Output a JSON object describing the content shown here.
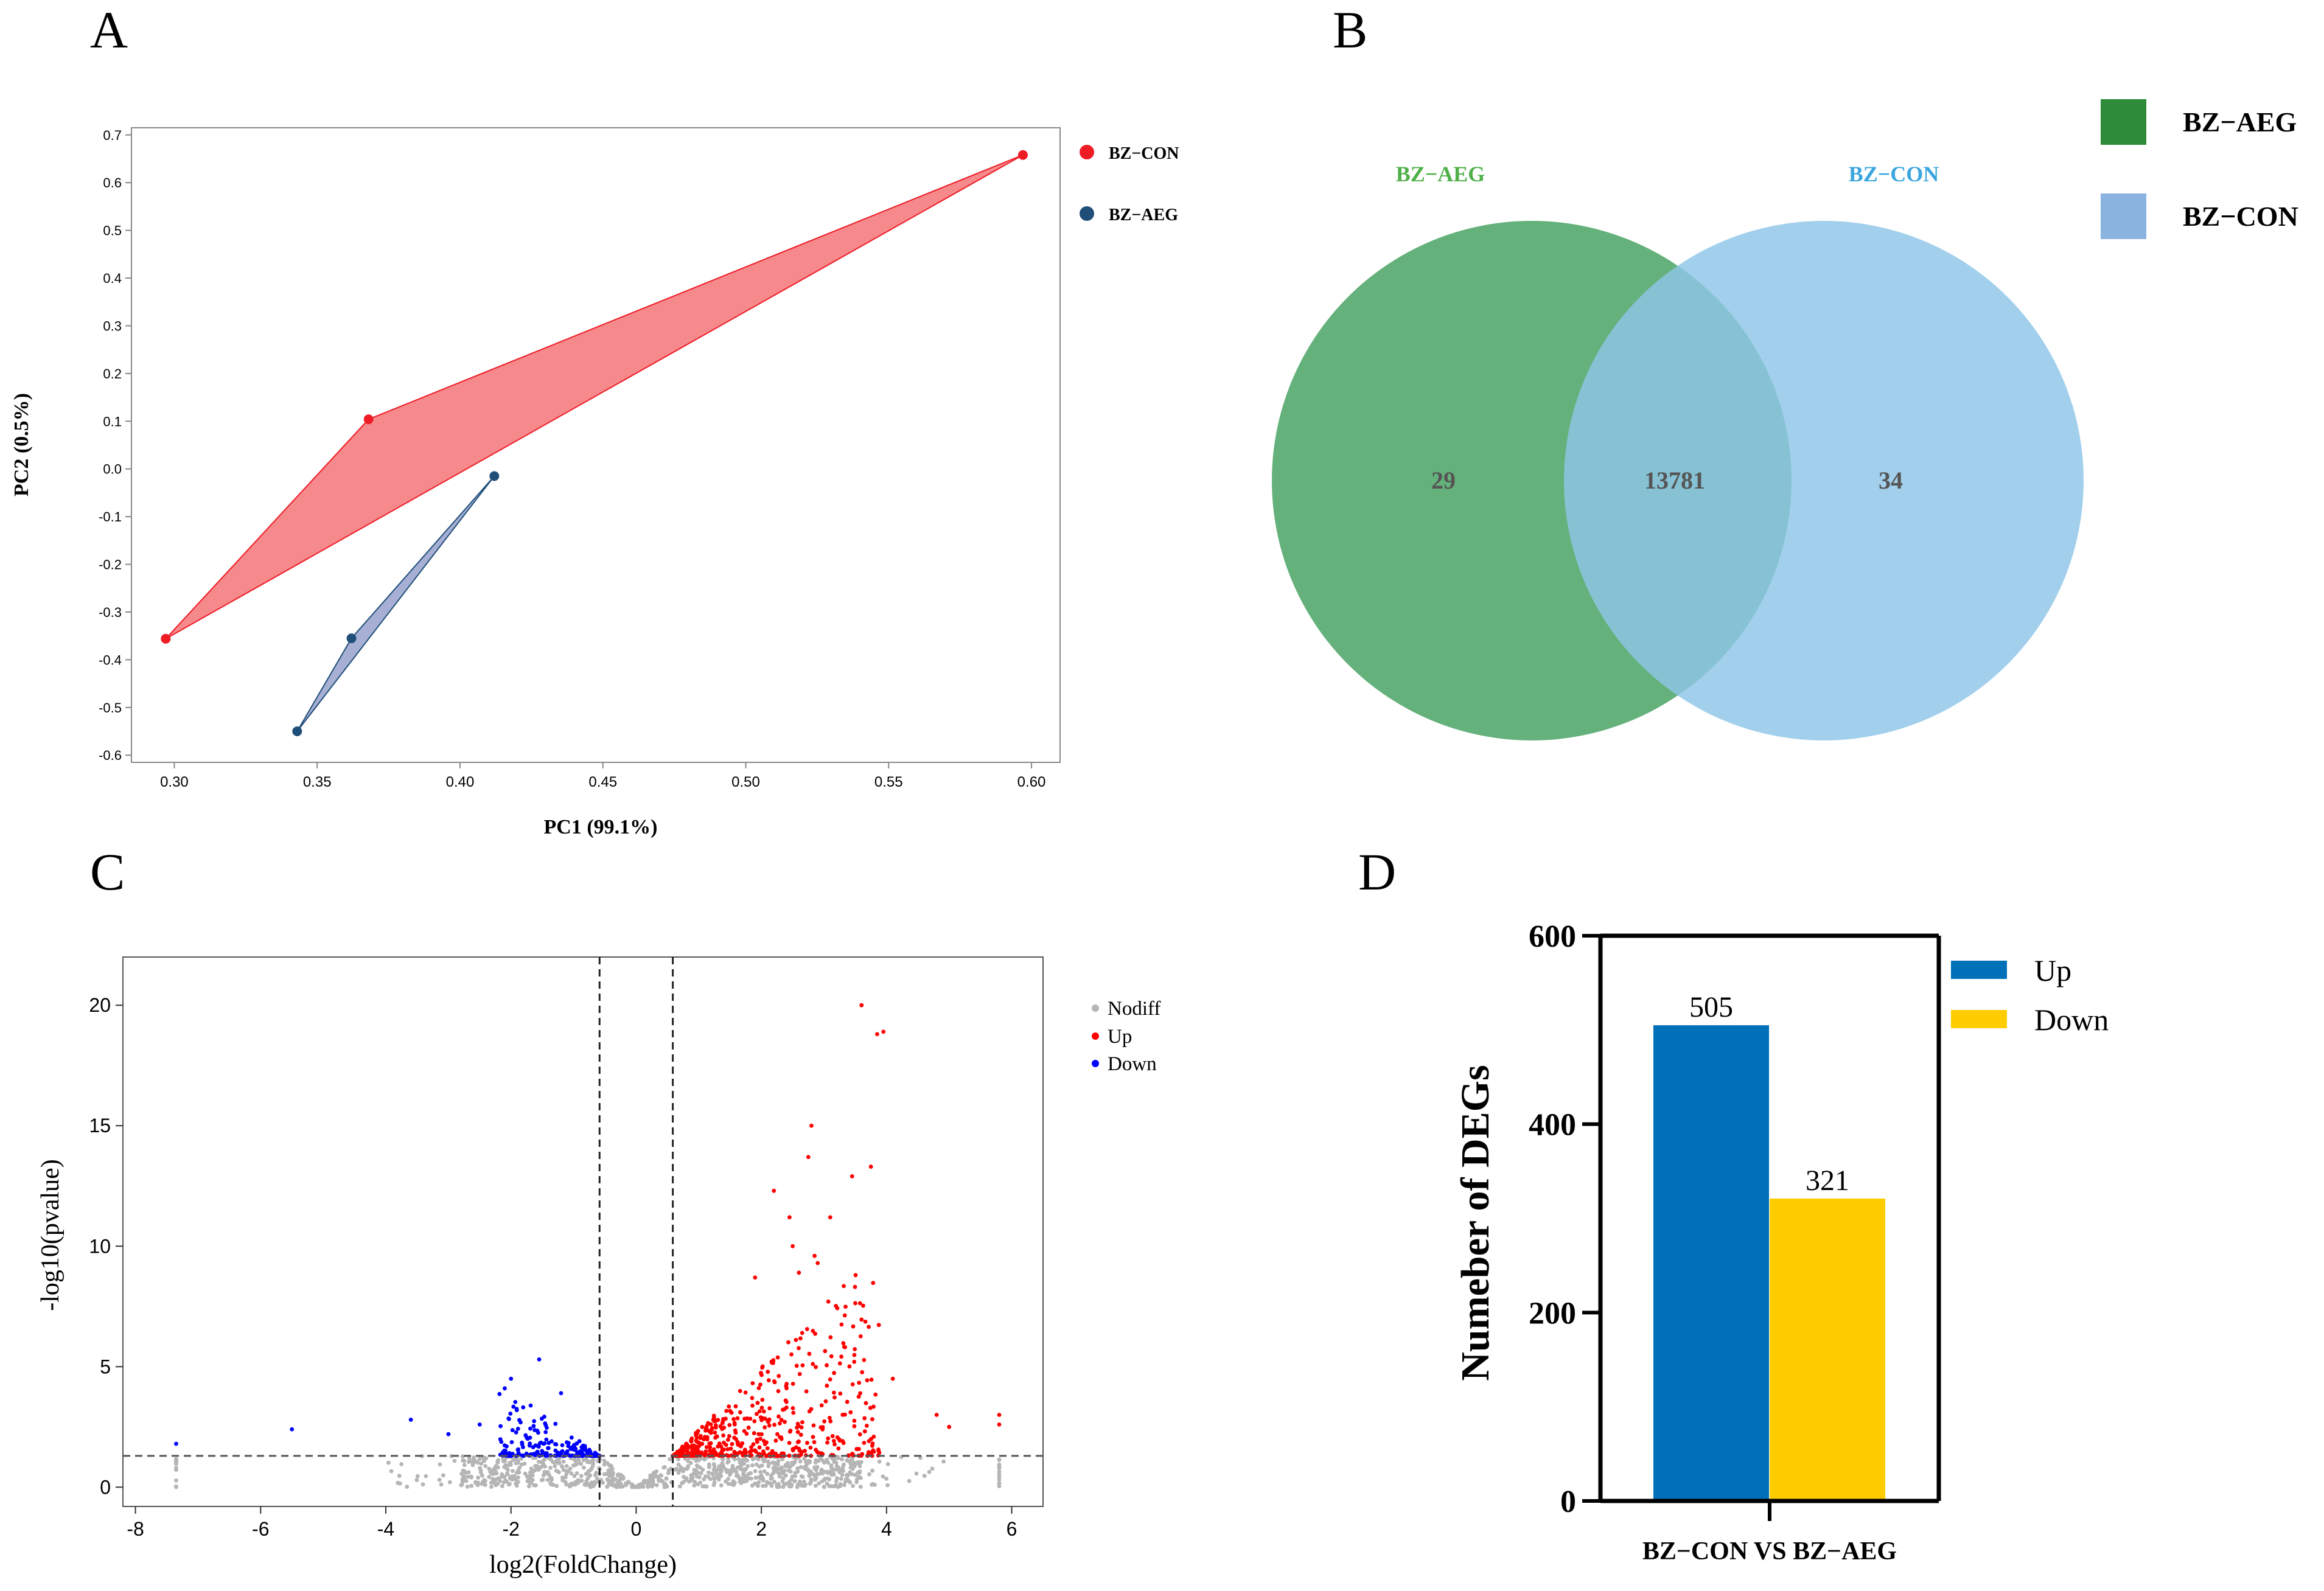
{
  "panel_labels": [
    "A",
    "B",
    "C",
    "D"
  ],
  "chart_data": [
    {
      "panel": "A",
      "type": "scatter",
      "title": "",
      "xlabel": "PC1 (99.1%)",
      "ylabel": "PC2 (0.5%)",
      "xlim": [
        0.285,
        0.61
      ],
      "ylim": [
        -0.615,
        0.715
      ],
      "xticks": [
        "0.30",
        "0.35",
        "0.40",
        "0.45",
        "0.50",
        "0.55",
        "0.60"
      ],
      "xtick_values": [
        0.3,
        0.35,
        0.4,
        0.45,
        0.5,
        0.55,
        0.6
      ],
      "yticks": [
        "0.7",
        "0.6",
        "0.5",
        "0.4",
        "0.3",
        "0.2",
        "0.1",
        "0.0",
        "-0.1",
        "-0.2",
        "-0.3",
        "-0.4",
        "-0.5",
        "-0.6"
      ],
      "ytick_values": [
        0.7,
        0.6,
        0.5,
        0.4,
        0.3,
        0.2,
        0.1,
        0.0,
        -0.1,
        -0.2,
        -0.3,
        -0.4,
        -0.5,
        -0.6
      ],
      "series": [
        {
          "name": "BZ-CON",
          "color": "#ee1c25",
          "fill": "#f47c80",
          "points": [
            [
              0.597,
              0.658
            ],
            [
              0.368,
              0.104
            ],
            [
              0.297,
              -0.356
            ]
          ]
        },
        {
          "name": "BZ-AEG",
          "color": "#1f4e79",
          "fill": "#9da7cf",
          "points": [
            [
              0.412,
              -0.015
            ],
            [
              0.362,
              -0.355
            ],
            [
              0.343,
              -0.55
            ]
          ]
        }
      ],
      "legend": [
        "BZ−CON",
        "BZ−AEG"
      ]
    },
    {
      "panel": "B",
      "type": "venn",
      "sets": [
        {
          "name": "BZ−AEG",
          "color": "#4aa364",
          "unique": "29"
        },
        {
          "name": "BZ−CON",
          "color": "#8ec6e8",
          "unique": "34"
        }
      ],
      "intersection": "13781",
      "legend": [
        {
          "label": "BZ−AEG",
          "color": "#2e8b38"
        },
        {
          "label": "BZ−CON",
          "color": "#8bb3e0"
        }
      ]
    },
    {
      "panel": "C",
      "type": "scatter",
      "title": "",
      "xlabel": "log2(FoldChange)",
      "ylabel": "-log10(pvalue)",
      "xlim": [
        -8.2,
        6.5
      ],
      "ylim": [
        -0.8,
        22
      ],
      "xticks": [
        "-8",
        "-6",
        "-4",
        "-2",
        "0",
        "2",
        "4",
        "6"
      ],
      "xtick_values": [
        -8,
        -6,
        -4,
        -2,
        0,
        2,
        4,
        6
      ],
      "yticks": [
        "0",
        "5",
        "10",
        "15",
        "20"
      ],
      "ytick_values": [
        0,
        5,
        10,
        15,
        20
      ],
      "thresholds": {
        "fold_change": [
          -0.585,
          0.585
        ],
        "pvalue_line": 1.3
      },
      "legend": [
        {
          "label": "Nodiff",
          "color": "#b5b5b5"
        },
        {
          "label": "Up",
          "color": "#ff0000"
        },
        {
          "label": "Down",
          "color": "#0000ff"
        }
      ],
      "highlighted_points": {
        "up": [
          [
            3.6,
            20.0
          ],
          [
            3.85,
            18.8
          ],
          [
            3.95,
            18.9
          ],
          [
            2.8,
            15.0
          ],
          [
            3.75,
            13.3
          ],
          [
            2.75,
            13.7
          ],
          [
            3.45,
            12.9
          ],
          [
            2.2,
            12.3
          ],
          [
            2.45,
            11.2
          ],
          [
            3.1,
            11.2
          ],
          [
            2.5,
            10.0
          ],
          [
            2.85,
            9.6
          ],
          [
            2.9,
            9.3
          ],
          [
            2.6,
            8.9
          ],
          [
            1.9,
            8.7
          ],
          [
            4.1,
            4.5
          ],
          [
            4.8,
            3.0
          ],
          [
            5.0,
            2.5
          ],
          [
            5.8,
            3.0
          ],
          [
            5.8,
            2.6
          ]
        ],
        "down": [
          [
            -1.55,
            5.3
          ],
          [
            -2.0,
            4.5
          ],
          [
            -2.1,
            4.1
          ],
          [
            -5.5,
            2.4
          ],
          [
            -7.35,
            1.8
          ],
          [
            -3.6,
            2.8
          ],
          [
            -3.0,
            2.2
          ],
          [
            -2.5,
            2.6
          ],
          [
            -1.2,
            3.9
          ]
        ]
      },
      "point_generation": {
        "nodiff_count": 900,
        "up_count": 520,
        "down_count": 210
      }
    },
    {
      "panel": "D",
      "type": "bar",
      "categories": [
        "BZ−CON VS BZ−AEG"
      ],
      "series": [
        {
          "name": "Up",
          "values": [
            505
          ],
          "color": "#0070b8"
        },
        {
          "name": "Down",
          "values": [
            321
          ],
          "color": "#ffcc00"
        }
      ],
      "value_labels": [
        "505",
        "321"
      ],
      "xlabel": "BZ−CON VS BZ−AEG",
      "ylabel": "Numeber of DEGs",
      "ylim": [
        0,
        600
      ],
      "yticks": [
        "600",
        "400",
        "200",
        "0"
      ],
      "ytick_values": [
        600,
        400,
        200,
        0
      ],
      "legend": [
        "Up",
        "Down"
      ]
    }
  ]
}
